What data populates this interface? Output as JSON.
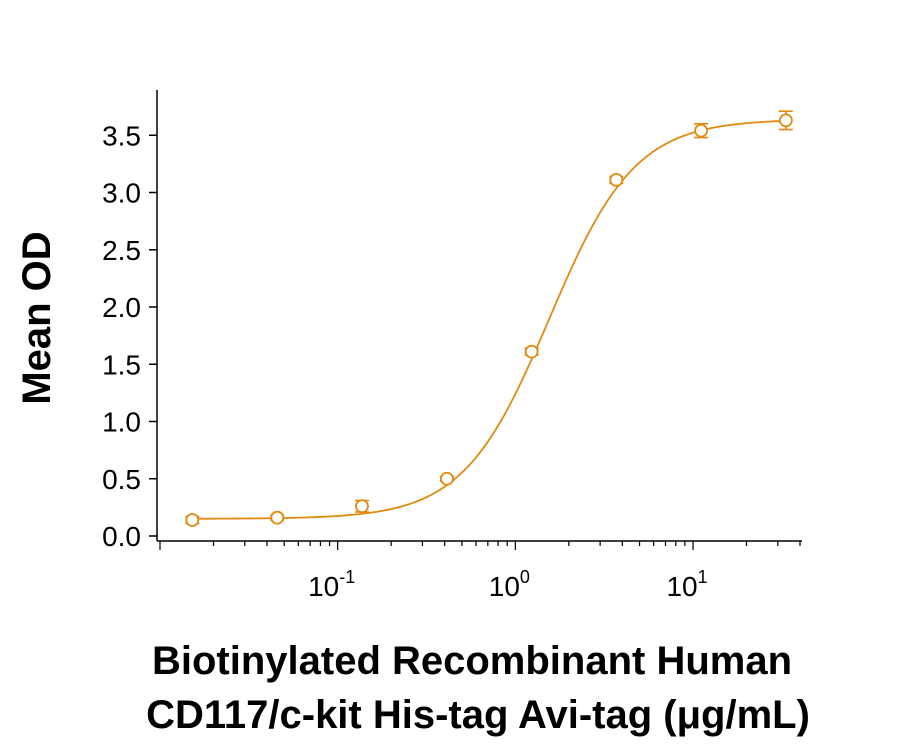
{
  "chart_data": {
    "type": "scatter",
    "x_scale": "log",
    "xlim": [
      0.01,
      40
    ],
    "ylim": [
      0.0,
      3.8
    ],
    "ylabel": "Mean OD",
    "xlabel_lines": [
      "Biotinylated Recombinant Human",
      "CD117/c-kit His-tag Avi-tag (μg/mL)"
    ],
    "y_ticks": [
      {
        "value": 0.0,
        "label": "0.0"
      },
      {
        "value": 0.5,
        "label": "0.5"
      },
      {
        "value": 1.0,
        "label": "1.0"
      },
      {
        "value": 1.5,
        "label": "1.5"
      },
      {
        "value": 2.0,
        "label": "2.0"
      },
      {
        "value": 2.5,
        "label": "2.5"
      },
      {
        "value": 3.0,
        "label": "3.0"
      },
      {
        "value": 3.5,
        "label": "3.5"
      }
    ],
    "x_major_ticks": [
      {
        "value": 0.1,
        "base": "10",
        "exp": "-1"
      },
      {
        "value": 1,
        "base": "10",
        "exp": "0"
      },
      {
        "value": 10,
        "base": "10",
        "exp": "1"
      }
    ],
    "grid": false,
    "color": "#E08A12",
    "series": [
      {
        "points": [
          {
            "x": 0.0152,
            "y": 0.14,
            "err": 0.03
          },
          {
            "x": 0.0457,
            "y": 0.16,
            "err": 0.02
          },
          {
            "x": 0.137,
            "y": 0.26,
            "err": 0.05
          },
          {
            "x": 0.412,
            "y": 0.5,
            "err": 0.02
          },
          {
            "x": 1.235,
            "y": 1.61,
            "err": 0.03
          },
          {
            "x": 3.7,
            "y": 3.11,
            "err": 0.03
          },
          {
            "x": 11.1,
            "y": 3.54,
            "err": 0.06
          },
          {
            "x": 33.3,
            "y": 3.63,
            "err": 0.08
          }
        ],
        "fit": {
          "model": "4PL",
          "bottom": 0.15,
          "top": 3.64,
          "ec50": 1.55,
          "hill": 1.8
        }
      }
    ]
  }
}
